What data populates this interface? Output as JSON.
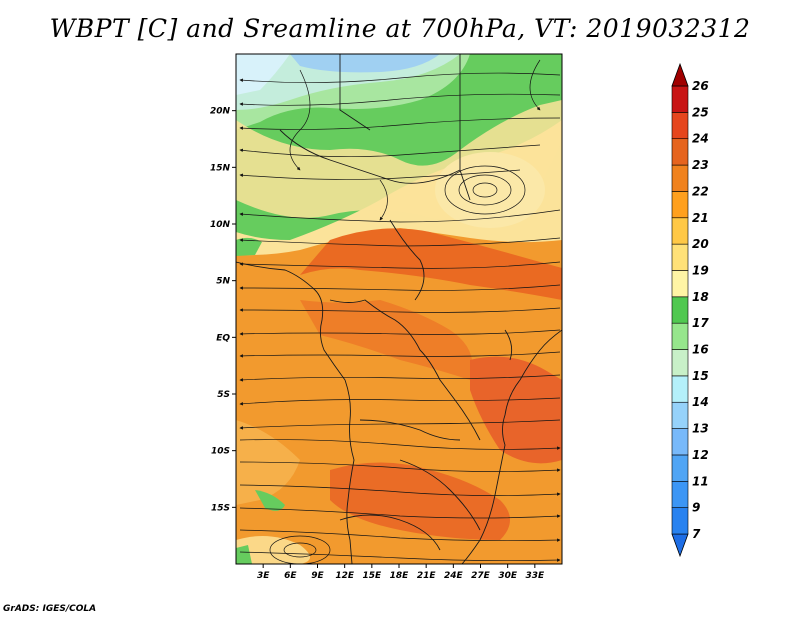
{
  "title": "WBPT [C] and Sreamline at 700hPa, VT: 2019032312",
  "credit": "GrADS: IGES/COLA",
  "map": {
    "variable": "Wet-bulb potential temperature",
    "level": "700hPa",
    "valid_time": "2019032312",
    "lon_range": [
      0,
      36
    ],
    "lat_range": [
      -20,
      25
    ],
    "lat_ticks": [
      {
        "value": 20,
        "label": "20N"
      },
      {
        "value": 15,
        "label": "15N"
      },
      {
        "value": 10,
        "label": "10N"
      },
      {
        "value": 5,
        "label": "5N"
      },
      {
        "value": 0,
        "label": "EQ"
      },
      {
        "value": -5,
        "label": "5S"
      },
      {
        "value": -10,
        "label": "10S"
      },
      {
        "value": -15,
        "label": "15S"
      }
    ],
    "lon_ticks": [
      {
        "value": 3,
        "label": "3E"
      },
      {
        "value": 6,
        "label": "6E"
      },
      {
        "value": 9,
        "label": "9E"
      },
      {
        "value": 12,
        "label": "12E"
      },
      {
        "value": 15,
        "label": "15E"
      },
      {
        "value": 18,
        "label": "18E"
      },
      {
        "value": 21,
        "label": "21E"
      },
      {
        "value": 24,
        "label": "24E"
      },
      {
        "value": 27,
        "label": "27E"
      },
      {
        "value": 30,
        "label": "30E"
      },
      {
        "value": 33,
        "label": "33E"
      }
    ]
  },
  "colorbar": {
    "levels": [
      "7",
      "9",
      "11",
      "12",
      "13",
      "14",
      "15",
      "16",
      "17",
      "18",
      "19",
      "20",
      "21",
      "22",
      "23",
      "24",
      "25",
      "26"
    ],
    "colors": [
      "#1e6ee6",
      "#2882f0",
      "#3c96f5",
      "#50a5f5",
      "#78b9fa",
      "#96d2fa",
      "#b4f0fa",
      "#c8f0c8",
      "#96e68c",
      "#50c850",
      "#fff5a5",
      "#ffe178",
      "#ffc846",
      "#ffa01e",
      "#f0821e",
      "#e6641e",
      "#e6461e",
      "#c81414",
      "#a00000"
    ]
  }
}
